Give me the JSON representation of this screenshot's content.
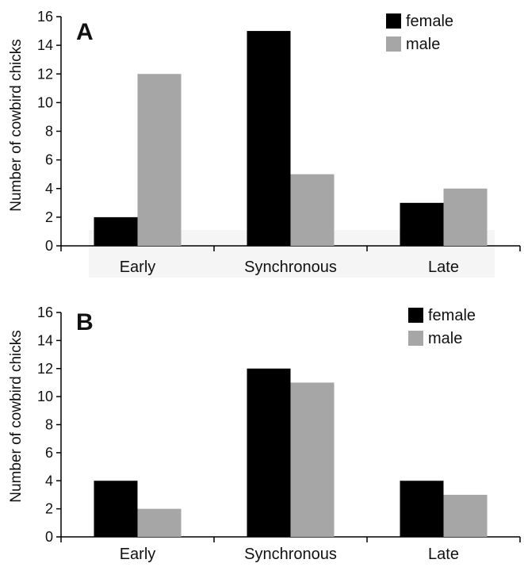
{
  "chart_data": [
    {
      "type": "bar",
      "panel_label": "A",
      "categories": [
        "Early",
        "Synchronous",
        "Late"
      ],
      "series": [
        {
          "name": "female",
          "values": [
            2,
            15,
            3
          ],
          "color": "#000000"
        },
        {
          "name": "male",
          "values": [
            12,
            5,
            4
          ],
          "color": "#a6a6a6"
        }
      ],
      "ylabel": "Number of cowbird chicks",
      "xlabel": "",
      "ylim": [
        0,
        16
      ],
      "yticks": [
        "0",
        "2",
        "4",
        "6",
        "8",
        "10",
        "12",
        "14",
        "16"
      ],
      "legend_position": "top-right",
      "grid": false
    },
    {
      "type": "bar",
      "panel_label": "B",
      "categories": [
        "Early",
        "Synchronous",
        "Late"
      ],
      "series": [
        {
          "name": "female",
          "values": [
            4,
            12,
            4
          ],
          "color": "#000000"
        },
        {
          "name": "male",
          "values": [
            2,
            11,
            3
          ],
          "color": "#a6a6a6"
        }
      ],
      "ylabel": "Number of cowbird chicks",
      "xlabel": "",
      "ylim": [
        0,
        16
      ],
      "yticks": [
        "0",
        "2",
        "4",
        "6",
        "8",
        "10",
        "12",
        "14",
        "16"
      ],
      "legend_position": "top-right",
      "grid": false
    }
  ]
}
